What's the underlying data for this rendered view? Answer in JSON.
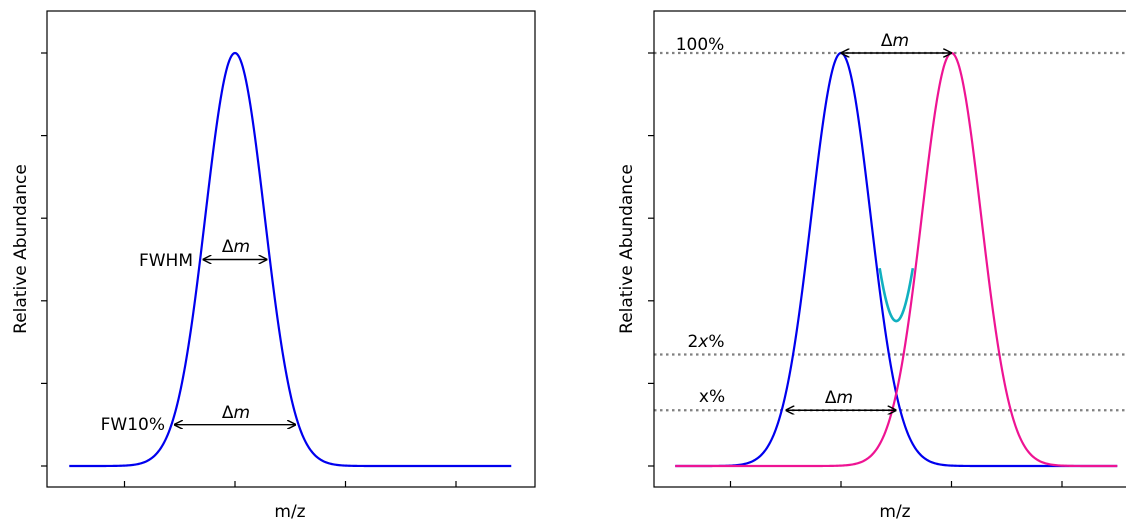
{
  "chart_data": [
    {
      "type": "line",
      "xlabel": "m/z",
      "ylabel": "Relative Abundance",
      "xlim": [
        -1.5,
        2.5
      ],
      "ylim": [
        -0.05,
        1.05
      ],
      "y_ticklabels": "none",
      "grid": false,
      "series": [
        {
          "color": "#0000ee",
          "peak": {
            "center": 0,
            "sigma": 0.268,
            "height": 1.0
          }
        }
      ],
      "annotations": [
        {
          "type": "double-arrow",
          "x": [
            -0.29,
            0.29
          ],
          "y": 0.5,
          "label": "Δm",
          "side_label": "FWHM"
        },
        {
          "type": "double-arrow",
          "x": [
            -0.55,
            0.55
          ],
          "y": 0.1,
          "label": "Δm",
          "side_label": "FW10%"
        }
      ],
      "labels": {
        "fwhm": "FWHM",
        "fw10": "FW10%",
        "dm": "Δ",
        "m": "m"
      }
    },
    {
      "type": "line",
      "xlabel": "m/z",
      "ylabel": "Relative Abundance",
      "xlim": [
        -1.5,
        2.5
      ],
      "ylim": [
        -0.05,
        1.05
      ],
      "y_ticklabels": "none",
      "grid": false,
      "series": [
        {
          "color": "#0000ee",
          "peak": {
            "center": 0,
            "sigma": 0.268,
            "height": 1.0
          }
        },
        {
          "color": "#ee1493",
          "peak": {
            "center": 1,
            "sigma": 0.268,
            "height": 1.0
          }
        },
        {
          "color": "#11b0c0",
          "peak": "sum",
          "x_range": [
            0.35,
            0.65
          ]
        }
      ],
      "reference_lines": [
        {
          "y": 1.0,
          "label": "100%",
          "style": "dotted",
          "color": "#808080"
        },
        {
          "y": 0.27,
          "label_prefix": "2",
          "label_var": "x",
          "label_suffix": "%",
          "style": "dotted",
          "color": "#808080"
        },
        {
          "y": 0.135,
          "label_prefix": "",
          "label_var": "x",
          "label_suffix": "%",
          "style": "dotted",
          "color": "#808080"
        }
      ],
      "annotations": [
        {
          "type": "double-arrow",
          "x": [
            0,
            1
          ],
          "y": 1.0,
          "label": "Δm"
        },
        {
          "type": "double-arrow",
          "x": [
            -0.5,
            0.5
          ],
          "y": 0.135,
          "label": "Δm"
        }
      ],
      "labels": {
        "dm": "Δ",
        "m": "m"
      }
    }
  ]
}
